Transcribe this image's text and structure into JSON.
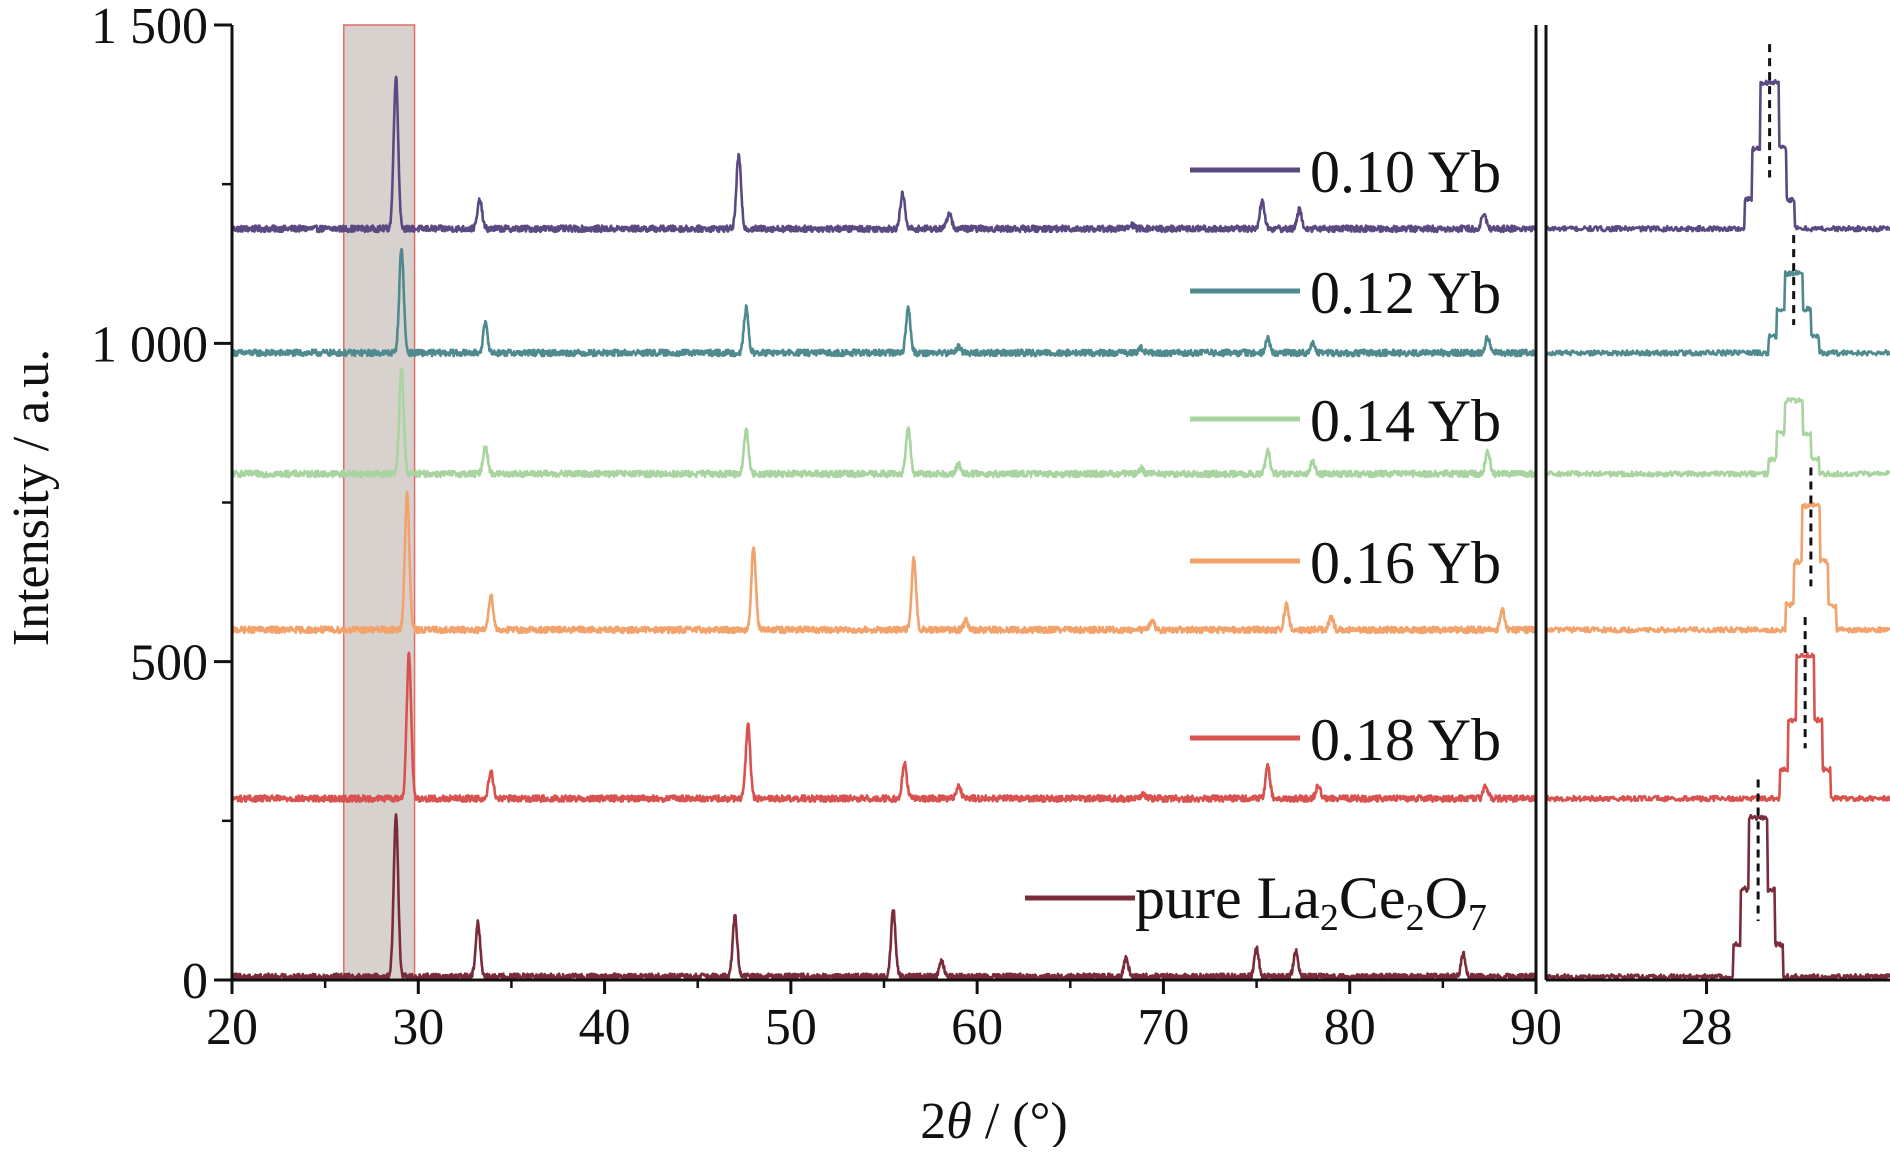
{
  "chart_data": {
    "type": "line",
    "xlabel_prefix": "2",
    "xlabel_symbol": "θ",
    "xlabel_suffix": " / (°)",
    "ylabel": "Intensity / a.u.",
    "main_panel": {
      "xlim": [
        20,
        90
      ],
      "ylim": [
        0,
        1500
      ],
      "x_ticks": [
        20,
        30,
        40,
        50,
        60,
        70,
        80,
        90
      ],
      "y_tick_labels": [
        {
          "value": 0,
          "label": "0"
        },
        {
          "value": 500,
          "label": "500"
        },
        {
          "value": 1000,
          "label": "1 000"
        },
        {
          "value": 1500,
          "label": "1 500"
        }
      ],
      "highlight_region": [
        26.0,
        29.8
      ]
    },
    "inset_panel": {
      "xlim": [
        26.6,
        29.6
      ],
      "x_ticks": [
        28
      ],
      "peak_markers": [
        {
          "series": "0.10 Yb",
          "x": 28.55
        },
        {
          "series": "0.12 Yb",
          "x": 28.76
        },
        {
          "series": "0.16 Yb",
          "x": 28.91
        },
        {
          "series": "0.18 Yb",
          "x": 28.86
        },
        {
          "series": "pure La2Ce2O7",
          "x": 28.45
        }
      ]
    },
    "series": [
      {
        "name": "0.10 Yb",
        "color": "#5b4a82",
        "baseline": 1180,
        "peaks": [
          [
            28.8,
            240
          ],
          [
            33.3,
            45
          ],
          [
            47.2,
            115
          ],
          [
            56.0,
            55
          ],
          [
            58.5,
            25
          ],
          [
            68.3,
            6
          ],
          [
            75.3,
            45
          ],
          [
            77.3,
            30
          ],
          [
            87.2,
            25
          ]
        ],
        "inset_peak": {
          "center": 28.55,
          "height": 230
        }
      },
      {
        "name": "0.12 Yb",
        "color": "#4f8a8e",
        "baseline": 985,
        "peaks": [
          [
            29.1,
            165
          ],
          [
            33.6,
            45
          ],
          [
            47.6,
            70
          ],
          [
            56.3,
            70
          ],
          [
            59.0,
            10
          ],
          [
            68.8,
            8
          ],
          [
            75.6,
            22
          ],
          [
            78.0,
            15
          ],
          [
            87.4,
            25
          ]
        ],
        "inset_peak": {
          "center": 28.76,
          "height": 125
        }
      },
      {
        "name": "0.14 Yb",
        "color": "#a8d4a0",
        "baseline": 795,
        "peaks": [
          [
            29.1,
            165
          ],
          [
            33.6,
            45
          ],
          [
            47.6,
            70
          ],
          [
            56.3,
            70
          ],
          [
            59.0,
            15
          ],
          [
            68.8,
            8
          ],
          [
            75.6,
            35
          ],
          [
            78.0,
            20
          ],
          [
            87.4,
            35
          ]
        ],
        "inset_peak": {
          "center": 28.76,
          "height": 115
        }
      },
      {
        "name": "0.16 Yb",
        "color": "#f2a26b",
        "baseline": 550,
        "peaks": [
          [
            29.4,
            215
          ],
          [
            33.9,
            55
          ],
          [
            48.0,
            130
          ],
          [
            56.6,
            110
          ],
          [
            59.4,
            15
          ],
          [
            69.4,
            15
          ],
          [
            76.6,
            40
          ],
          [
            79.0,
            20
          ],
          [
            88.2,
            30
          ]
        ],
        "inset_peak": {
          "center": 28.91,
          "height": 195
        }
      },
      {
        "name": "0.18 Yb",
        "color": "#d8524f",
        "baseline": 285,
        "peaks": [
          [
            29.5,
            230
          ],
          [
            33.9,
            45
          ],
          [
            47.7,
            115
          ],
          [
            56.1,
            55
          ],
          [
            59.0,
            20
          ],
          [
            68.9,
            7
          ],
          [
            75.6,
            50
          ],
          [
            78.3,
            20
          ],
          [
            87.3,
            20
          ]
        ],
        "inset_peak": {
          "center": 28.86,
          "height": 225
        }
      },
      {
        "name": "pure La2Ce2O7",
        "color": "#7b2c3b",
        "baseline": 5,
        "peaks": [
          [
            28.8,
            255
          ],
          [
            33.2,
            85
          ],
          [
            47.0,
            95
          ],
          [
            55.5,
            105
          ],
          [
            58.1,
            25
          ],
          [
            68.0,
            30
          ],
          [
            75.0,
            45
          ],
          [
            77.1,
            40
          ],
          [
            86.1,
            35
          ]
        ],
        "inset_peak": {
          "center": 28.45,
          "height": 250
        }
      }
    ],
    "legend": {
      "placement": "right",
      "entries": [
        {
          "series": "0.10 Yb",
          "label": "0.10 Yb"
        },
        {
          "series": "0.12 Yb",
          "label": "0.12 Yb"
        },
        {
          "series": "0.14 Yb",
          "label": "0.14 Yb"
        },
        {
          "series": "0.16 Yb",
          "label": "0.16 Yb"
        },
        {
          "series": "0.18 Yb",
          "label": "0.18 Yb"
        },
        {
          "series": "pure La2Ce2O7",
          "label_parts": [
            "pure La",
            "2",
            "Ce",
            "2",
            "O",
            "7"
          ]
        }
      ]
    },
    "grid": false
  }
}
